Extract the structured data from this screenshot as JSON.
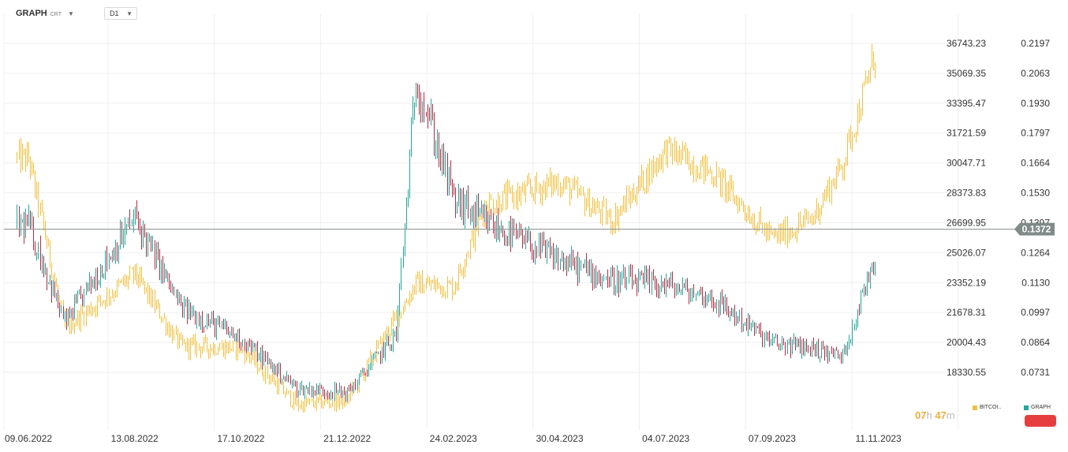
{
  "toolbar": {
    "symbol": "GRAPH",
    "symbol_sub": "CRT",
    "symbol_caret_icon": "chevron-down-icon",
    "timeframe": "D1",
    "timeframe_caret_icon": "chevron-down-icon"
  },
  "countdown": {
    "hours": "07",
    "h_unit": "h",
    "minutes": "47",
    "m_unit": "m"
  },
  "legend": {
    "bitcoin_label": "BITCOI..",
    "graph_label": "GRAPH",
    "bitcoin_color": "#f0c040",
    "graph_color": "#26a69a"
  },
  "colors": {
    "up": "#26a69a",
    "down": "#b22d45",
    "bitcoin": "#f0c040",
    "price_line": "#8a9290",
    "price_badge": "#7f8b88"
  },
  "chart_data": {
    "type": "line",
    "style": "ohlc-bars",
    "x_tick_labels": [
      "09.06.2022",
      "13.08.2022",
      "17.10.2022",
      "21.12.2022",
      "24.02.2023",
      "30.04.2023",
      "04.07.2023",
      "07.09.2023",
      "11.11.2023"
    ],
    "left_axis": {
      "series": "BITCOIN",
      "ticks": [
        "36743.23",
        "35069.35",
        "33395.47",
        "31721.59",
        "30047.71",
        "28373.83",
        "26699.95",
        "25026.07",
        "23352.19",
        "21678.31",
        "20004.43",
        "18330.55"
      ],
      "ylim": [
        16575,
        38880
      ]
    },
    "right_axis": {
      "series": "GRAPH",
      "ticks": [
        "0.2197",
        "0.2063",
        "0.1930",
        "0.1797",
        "0.1664",
        "0.1530",
        "0.1397",
        "0.1264",
        "0.1130",
        "0.0997",
        "0.0864",
        "0.0731"
      ],
      "ylim": [
        0.0591,
        0.2367
      ]
    },
    "current_price": "0.1372",
    "grid": true,
    "series": [
      {
        "name": "GRAPH",
        "x": [
          "09.06.2022",
          "01.07.2022",
          "13.08.2022",
          "10.09.2022",
          "17.10.2022",
          "20.11.2022",
          "21.12.2022",
          "20.01.2023",
          "01.02.2023",
          "24.02.2023",
          "15.03.2023",
          "30.04.2023",
          "01.06.2023",
          "04.07.2023",
          "01.08.2023",
          "07.09.2023",
          "01.10.2023",
          "20.10.2023",
          "11.11.2023",
          "16.11.2023"
        ],
        "values": [
          0.139,
          0.095,
          0.142,
          0.102,
          0.088,
          0.066,
          0.064,
          0.09,
          0.205,
          0.15,
          0.14,
          0.123,
          0.114,
          0.112,
          0.106,
          0.086,
          0.084,
          0.08,
          0.13,
          0.1372
        ]
      },
      {
        "name": "BITCOIN",
        "x": [
          "09.06.2022",
          "01.07.2022",
          "13.08.2022",
          "10.09.2022",
          "17.10.2022",
          "20.11.2022",
          "21.12.2022",
          "20.01.2023",
          "01.02.2023",
          "24.02.2023",
          "15.03.2023",
          "30.04.2023",
          "01.06.2023",
          "04.07.2023",
          "01.08.2023",
          "07.09.2023",
          "01.10.2023",
          "20.10.2023",
          "11.11.2023",
          "16.11.2023"
        ],
        "values": [
          30300,
          20800,
          23800,
          19800,
          19700,
          16500,
          16800,
          21400,
          23300,
          23100,
          27700,
          29000,
          26800,
          30800,
          29500,
          25800,
          26900,
          30000,
          36800,
          36300
        ]
      }
    ]
  }
}
